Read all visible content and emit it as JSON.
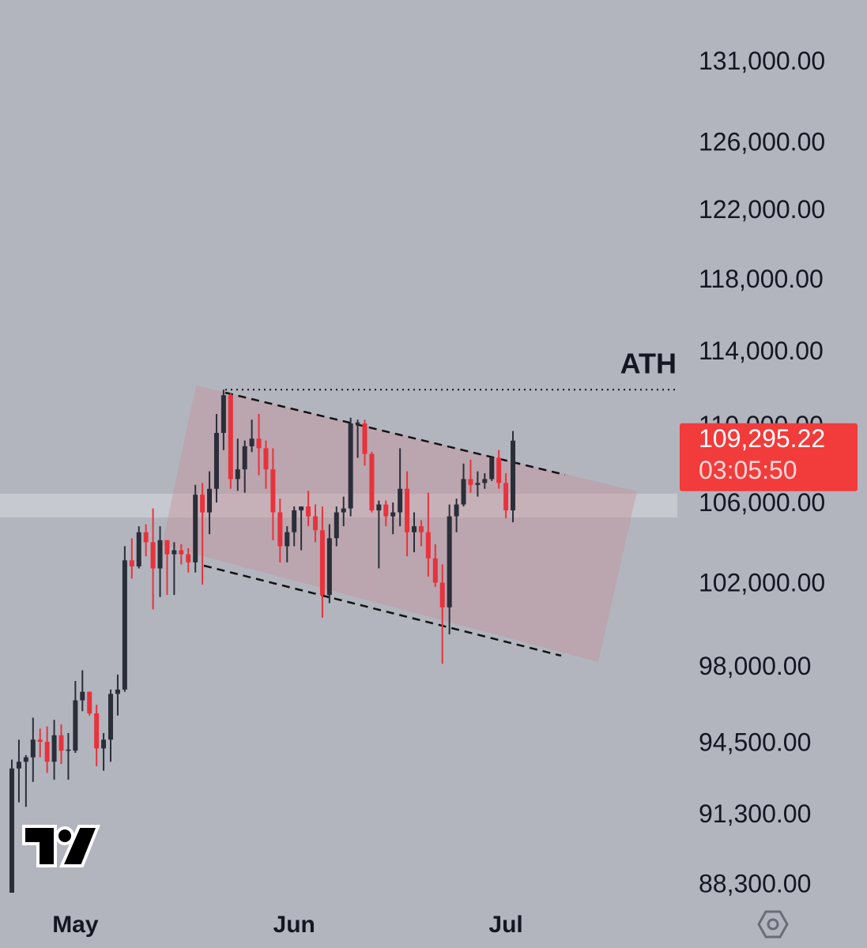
{
  "chart_data": {
    "type": "candlestick",
    "categories": [
      null,
      null,
      null,
      null,
      null,
      null,
      null,
      null,
      null,
      "May",
      null,
      null,
      null,
      null,
      null,
      null,
      null,
      null,
      null,
      null,
      null,
      null,
      null,
      null,
      null,
      null,
      null,
      null,
      null,
      null,
      null,
      null,
      null,
      null,
      null,
      null,
      null,
      null,
      null,
      null,
      "Jun",
      null,
      null,
      null,
      null,
      null,
      null,
      null,
      null,
      null,
      null,
      null,
      null,
      null,
      null,
      null,
      null,
      null,
      null,
      null,
      null,
      null,
      null,
      null,
      null,
      null,
      null,
      null,
      null,
      null,
      "Jul",
      null
    ],
    "open": [
      87500,
      93400,
      93700,
      93900,
      94700,
      94600,
      93700,
      94900,
      94200,
      94200,
      96500,
      96900,
      95900,
      94300,
      94700,
      96800,
      97000,
      103200,
      102900,
      104600,
      104100,
      102800,
      104200,
      103500,
      103700,
      103500,
      103100,
      106500,
      105600,
      106800,
      109700,
      111700,
      107300,
      107800,
      109000,
      109400,
      108900,
      107800,
      105600,
      103900,
      104600,
      105700,
      105900,
      105400,
      104700,
      101500,
      104300,
      105600,
      105800,
      110200,
      110200,
      108600,
      105700,
      106000,
      105400,
      105600,
      106800,
      104600,
      104900,
      104600,
      103300,
      102100,
      100900,
      105400,
      106000,
      107300,
      107000,
      107100,
      107300,
      108400,
      107100,
      105700
    ],
    "high": [
      93800,
      94700,
      94000,
      95700,
      95200,
      95300,
      95600,
      95400,
      95000,
      97400,
      97900,
      96900,
      96300,
      95000,
      97000,
      97700,
      103900,
      104300,
      104900,
      105000,
      105800,
      104900,
      104200,
      104100,
      104000,
      103800,
      107000,
      107100,
      107700,
      110700,
      112000,
      111800,
      109400,
      109300,
      110400,
      110700,
      109300,
      108900,
      106300,
      104900,
      105900,
      105900,
      106700,
      106000,
      105900,
      105000,
      105900,
      106400,
      110500,
      110400,
      110400,
      108700,
      106200,
      106200,
      106100,
      108900,
      107700,
      105600,
      105200,
      106600,
      104000,
      103000,
      106000,
      106300,
      108100,
      108300,
      107700,
      107600,
      108500,
      108800,
      107600,
      109800
    ],
    "low": [
      87000,
      91900,
      91700,
      92800,
      93900,
      93200,
      92900,
      93600,
      92900,
      94100,
      96000,
      95800,
      93500,
      93300,
      93700,
      95800,
      96900,
      102300,
      102800,
      103400,
      100800,
      101400,
      101500,
      101500,
      103000,
      102600,
      102600,
      102000,
      104500,
      106100,
      108800,
      106800,
      106700,
      106600,
      108700,
      107500,
      106800,
      104200,
      103100,
      103100,
      103900,
      103700,
      104900,
      104100,
      100400,
      101100,
      103900,
      104900,
      105400,
      108400,
      108000,
      105600,
      102800,
      104900,
      104500,
      104900,
      103400,
      103600,
      103900,
      102400,
      101900,
      98200,
      99600,
      104600,
      105900,
      106600,
      106400,
      106800,
      107200,
      106800,
      105300,
      105100
    ],
    "close": [
      93400,
      93700,
      93900,
      94700,
      94600,
      93700,
      94900,
      94200,
      94250,
      96500,
      96900,
      95900,
      94300,
      94700,
      96800,
      97000,
      103200,
      102900,
      104600,
      104100,
      102800,
      104200,
      103500,
      103700,
      103500,
      103100,
      106500,
      105600,
      106800,
      109700,
      111700,
      107300,
      107800,
      109000,
      109400,
      108900,
      107800,
      105600,
      103900,
      104600,
      105700,
      105900,
      105400,
      104700,
      101500,
      104300,
      105600,
      105800,
      110200,
      110250,
      108600,
      105700,
      106000,
      105400,
      105600,
      106800,
      104600,
      104900,
      104600,
      103300,
      102100,
      100900,
      105400,
      106000,
      107300,
      107000,
      107100,
      107300,
      108400,
      107100,
      105700,
      109295.22
    ],
    "up_color": "#2a2e39",
    "down_color": "#e8323c",
    "log_scale": true,
    "grid": false,
    "ylim": [
      88000,
      135000
    ],
    "yticks": [
      {
        "value": 88300,
        "label": "88,300.00"
      },
      {
        "value": 91300,
        "label": "91,300.00"
      },
      {
        "value": 94500,
        "label": "94,500.00"
      },
      {
        "value": 98000,
        "label": "98,000.00"
      },
      {
        "value": 102000,
        "label": "102,000.00"
      },
      {
        "value": 106000,
        "label": "106,000.00"
      },
      {
        "value": 110000,
        "label": "110,000.00"
      },
      {
        "value": 114000,
        "label": "114,000.00"
      },
      {
        "value": 118000,
        "label": "118,000.00"
      },
      {
        "value": 122000,
        "label": "122,000.00"
      },
      {
        "value": 126000,
        "label": "126,000.00"
      },
      {
        "value": 131000,
        "label": "131,000.00"
      }
    ],
    "current_price": {
      "value": 109295.22,
      "label": "109,295.22"
    },
    "countdown": "03:05:50",
    "annotations": [
      {
        "text": "ATH",
        "value": 112000
      }
    ]
  }
}
